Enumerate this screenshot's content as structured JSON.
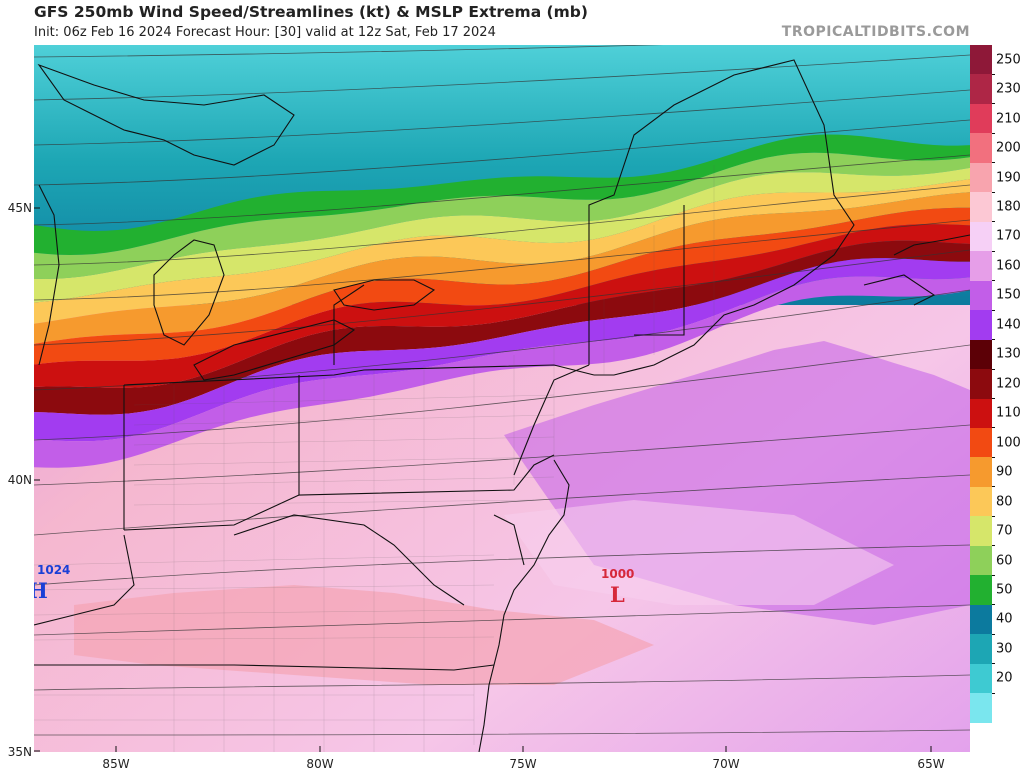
{
  "header": {
    "title": "GFS 250mb Wind Speed/Streamlines (kt) & MSLP Extrema (mb)",
    "subtitle": "Init: 06z Feb 16 2024   Forecast Hour: [30]   valid at 12z Sat, Feb 17 2024",
    "source": "TROPICALTIDBITS.COM"
  },
  "axes": {
    "lat_labels": [
      "45N",
      "40N",
      "35N"
    ],
    "lon_labels": [
      "85W",
      "80W",
      "75W",
      "70W",
      "65W"
    ]
  },
  "pressure_centers": [
    {
      "type": "H",
      "value": "1024",
      "color": "#1a3fd6"
    },
    {
      "type": "L",
      "value": "1000",
      "color": "#d6283a"
    }
  ],
  "colorbar": {
    "unit": "kt",
    "labels": [
      "250",
      "230",
      "210",
      "200",
      "190",
      "180",
      "170",
      "160",
      "150",
      "140",
      "130",
      "120",
      "110",
      "100",
      "90",
      "80",
      "70",
      "60",
      "50",
      "40",
      "30",
      "20"
    ],
    "colors": [
      "#8e1838",
      "#ae2646",
      "#e03c5a",
      "#f2707e",
      "#f8a4ae",
      "#fcc8d4",
      "#f6d0f6",
      "#e69ee8",
      "#c25ee8",
      "#a23cf0",
      "#5c0006",
      "#8c0a0e",
      "#cc1010",
      "#f24a12",
      "#f69a2e",
      "#fcc858",
      "#d6e66a",
      "#8ed05a",
      "#22b030",
      "#0c7a9e",
      "#1da6b4",
      "#3ecad2",
      "#7ae6ee",
      "#ffffff"
    ]
  },
  "map": {
    "wind_bands": [
      "#22b030",
      "#8ed05a",
      "#d6e66a",
      "#fcc858",
      "#f69a2e",
      "#f24a12",
      "#cc1010",
      "#8c0a0e",
      "#a23cf0",
      "#c25ee8"
    ],
    "high_wind_colors": [
      "#1da6b4",
      "#0c7a9e"
    ],
    "southern_colors": [
      "#e69ee8",
      "#f6d0f6",
      "#f8a4ae"
    ]
  }
}
